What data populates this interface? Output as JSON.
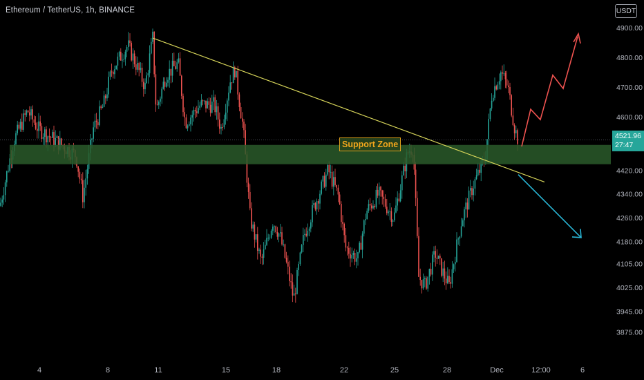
{
  "header": {
    "symbol_title": "Ethereum / TetherUS, 1h, BINANCE",
    "currency": "USDT"
  },
  "price_tag": {
    "price": "4521.96",
    "countdown": "27:47"
  },
  "colors": {
    "background": "#000000",
    "up_candle": "#26a69a",
    "down_candle": "#ef5350",
    "support_zone": "#2a5a2a",
    "trendline": "#d8d65a",
    "bull_arrow": "#ef5350",
    "bear_arrow": "#29b6d6",
    "axis_text": "#b2b5be"
  },
  "chart_data": {
    "type": "candlestick",
    "instrument": "Ethereum / TetherUS",
    "timeframe": "1h",
    "exchange": "BINANCE",
    "y_axis": {
      "ticks": [
        "4900.00",
        "4800.00",
        "4700.00",
        "4600.00",
        "4420.00",
        "4340.00",
        "4260.00",
        "4180.00",
        "4105.00",
        "4025.00",
        "3945.00",
        "3875.00"
      ],
      "range": [
        3830,
        4950
      ]
    },
    "x_axis": {
      "ticks": [
        "4",
        "8",
        "11",
        "15",
        "18",
        "22",
        "25",
        "28",
        "Dec",
        "12:00",
        "6"
      ]
    },
    "last_price": 4521.96,
    "price_path": [
      [
        "4",
        4300
      ],
      [
        "8",
        4620
      ],
      [
        "8",
        4760
      ],
      [
        "11",
        4870
      ],
      [
        "11",
        4620
      ],
      [
        "11",
        4740
      ],
      [
        "15",
        4640
      ],
      [
        "15",
        4770
      ],
      [
        "15",
        4560
      ],
      [
        "18",
        4350
      ],
      [
        "18",
        4200
      ],
      [
        "18",
        4110
      ],
      [
        "18",
        3980
      ],
      [
        "22",
        4200
      ],
      [
        "22",
        4420
      ],
      [
        "22",
        4310
      ],
      [
        "22",
        4120
      ],
      [
        "25",
        4390
      ],
      [
        "25",
        4510
      ],
      [
        "25",
        4440
      ],
      [
        "25",
        4110
      ],
      [
        "28",
        4100
      ],
      [
        "28",
        4200
      ],
      [
        "28",
        4030
      ],
      [
        "28",
        4380
      ],
      [
        "Dec",
        4660
      ],
      [
        "Dec",
        4740
      ],
      [
        "Dec",
        4530
      ]
    ],
    "annotations": {
      "support_zone": {
        "label": "Support Zone",
        "price_top": 4505,
        "price_bottom": 4440
      },
      "trendline": {
        "start": [
          "11",
          4865
        ],
        "end": [
          "Dec",
          4420
        ]
      },
      "bullish_projection": {
        "end_price": 4900,
        "direction": "up"
      },
      "bearish_projection": {
        "end_price": 4195,
        "direction": "down"
      }
    },
    "legend": "none",
    "grid": false
  }
}
